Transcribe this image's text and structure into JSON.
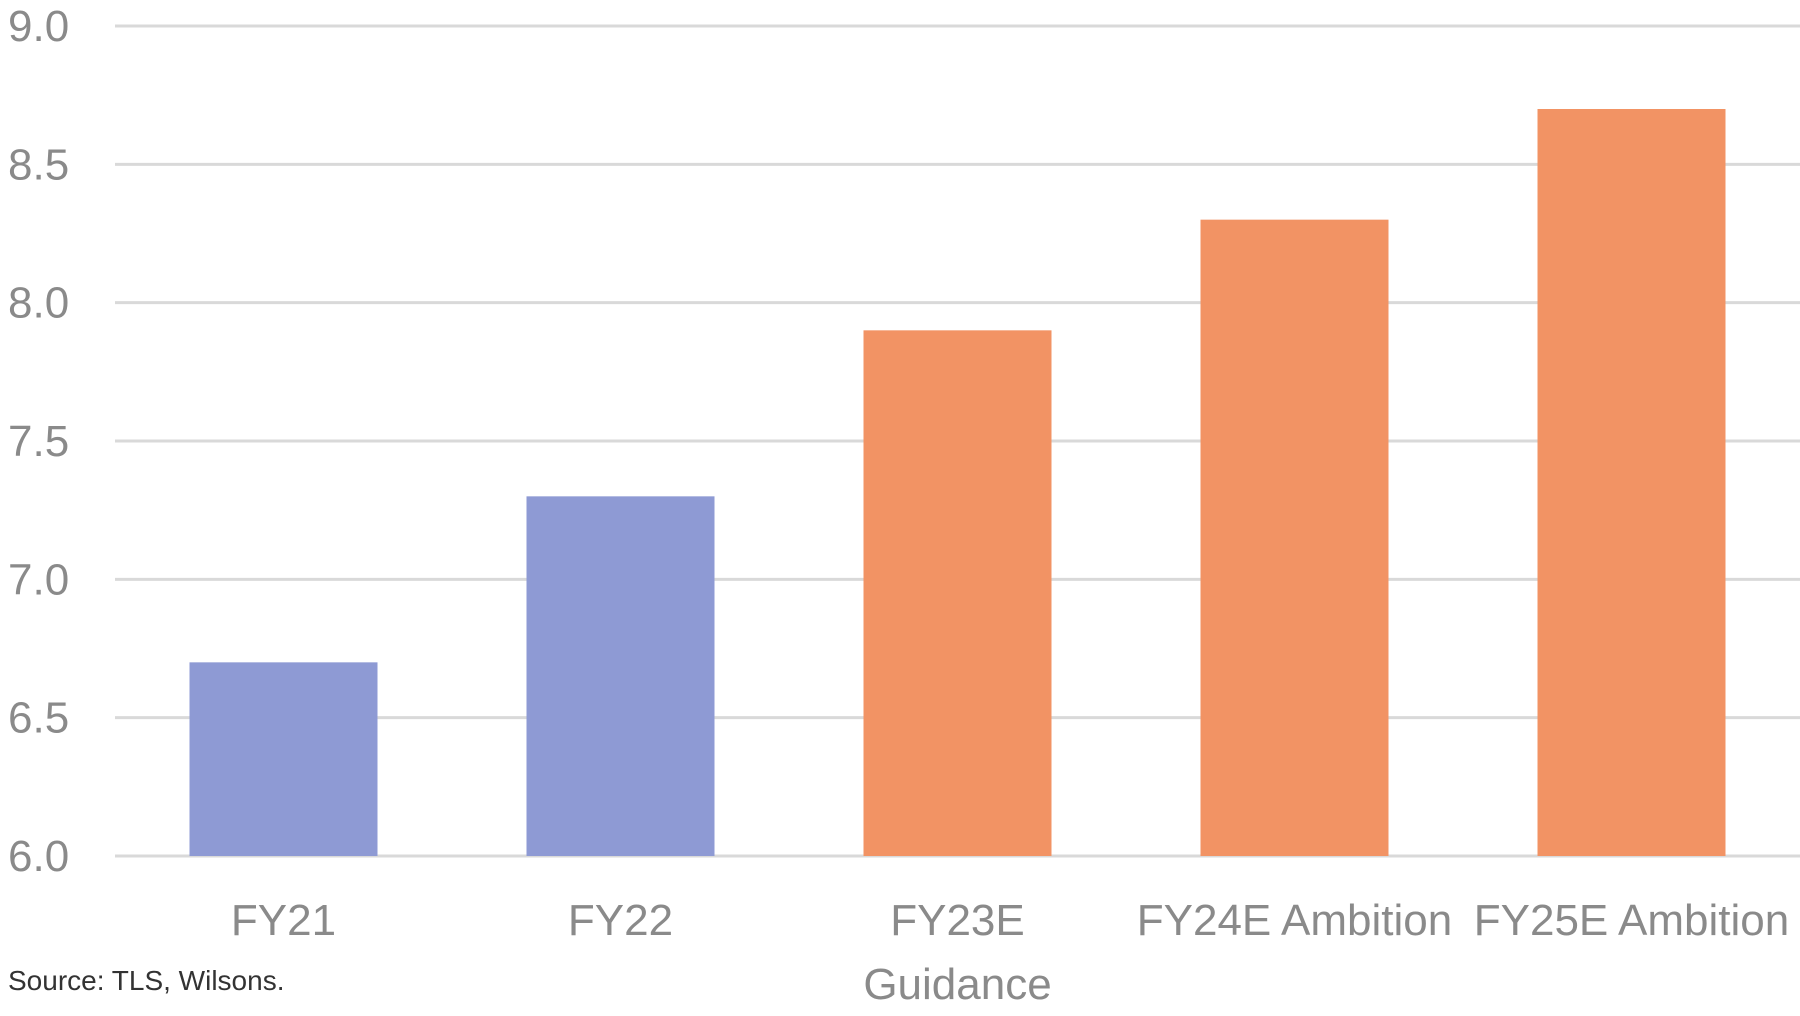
{
  "chart_data": {
    "type": "bar",
    "categories": [
      [
        "FY21"
      ],
      [
        "FY22"
      ],
      [
        "FY23E",
        "Guidance"
      ],
      [
        "FY24E Ambition"
      ],
      [
        "FY25E Ambition"
      ]
    ],
    "values": [
      6.7,
      7.3,
      7.9,
      8.3,
      8.7
    ],
    "bar_colors": [
      "#8e9ad4",
      "#8e9ad4",
      "#f29364",
      "#f29364",
      "#f29364"
    ],
    "ylim": [
      6.0,
      9.0
    ],
    "yticks": [
      "6.0",
      "6.5",
      "7.0",
      "7.5",
      "8.0",
      "8.5",
      "9.0"
    ],
    "grid": true,
    "title": "",
    "xlabel": "",
    "ylabel": ""
  },
  "source": "Source: TLS, Wilsons."
}
